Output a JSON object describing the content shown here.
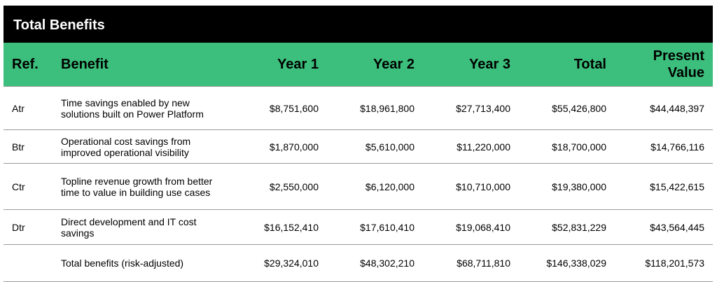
{
  "title": "Total Benefits",
  "columns": {
    "ref": "Ref.",
    "benefit": "Benefit",
    "year1": "Year 1",
    "year2": "Year 2",
    "year3": "Year 3",
    "total": "Total",
    "present_value_line1": "Present",
    "present_value_line2": "Value"
  },
  "rows": [
    {
      "ref": "Atr",
      "benefit": "Time savings enabled by new solutions built on Power Platform",
      "year1": "$8,751,600",
      "year2": "$18,961,800",
      "year3": "$27,713,400",
      "total": "$55,426,800",
      "pv": "$44,448,397"
    },
    {
      "ref": "Btr",
      "benefit": "Operational cost savings from improved operational visibility",
      "year1": "$1,870,000",
      "year2": "$5,610,000",
      "year3": "$11,220,000",
      "total": "$18,700,000",
      "pv": "$14,766,116"
    },
    {
      "ref": "Ctr",
      "benefit": "Topline revenue growth from better time to value in building use cases",
      "year1": "$2,550,000",
      "year2": "$6,120,000",
      "year3": "$10,710,000",
      "total": "$19,380,000",
      "pv": "$15,422,615"
    },
    {
      "ref": "Dtr",
      "benefit": "Direct development and IT cost savings",
      "year1": "$16,152,410",
      "year2": "$17,610,410",
      "year3": "$19,068,410",
      "total": "$52,831,229",
      "pv": "$43,564,445"
    },
    {
      "ref": "",
      "benefit": "Total benefits (risk-adjusted)",
      "year1": "$29,324,010",
      "year2": "$48,302,210",
      "year3": "$68,711,810",
      "total": "$146,338,029",
      "pv": "$118,201,573"
    }
  ],
  "colors": {
    "title_bg": "#000000",
    "header_bg": "#3cbf7c",
    "row_border": "#9a9a9a"
  }
}
